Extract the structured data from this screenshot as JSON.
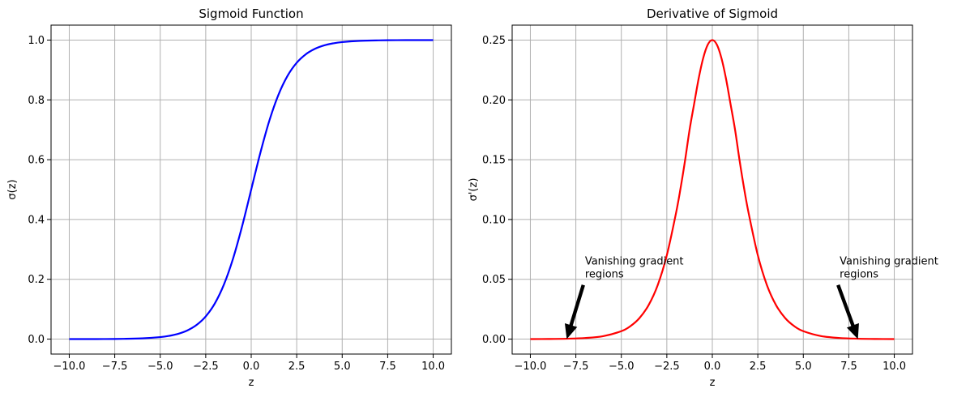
{
  "chart_data": [
    {
      "type": "line",
      "title": "Sigmoid Function",
      "xlabel": "z",
      "ylabel": "σ(z)",
      "xlim": [
        -11,
        11
      ],
      "ylim": [
        -0.05,
        1.05
      ],
      "xticks": [
        -10,
        -7.5,
        -5,
        -2.5,
        0,
        2.5,
        5,
        7.5,
        10
      ],
      "xtick_labels": [
        "−10.0",
        "−7.5",
        "−5.0",
        "−2.5",
        "0.0",
        "2.5",
        "5.0",
        "7.5",
        "10.0"
      ],
      "yticks": [
        0,
        0.2,
        0.4,
        0.6,
        0.8,
        1.0
      ],
      "ytick_labels": [
        "0.0",
        "0.2",
        "0.4",
        "0.6",
        "0.8",
        "1.0"
      ],
      "grid": true,
      "series": [
        {
          "color": "#0000ff",
          "x": [
            -10,
            -9,
            -8,
            -7,
            -6,
            -5,
            -4.5,
            -4,
            -3.5,
            -3,
            -2.5,
            -2,
            -1.5,
            -1,
            -0.5,
            0,
            0.5,
            1,
            1.5,
            2,
            2.5,
            3,
            3.5,
            4,
            4.5,
            5,
            6,
            7,
            8,
            9,
            10
          ],
          "y": [
            5e-05,
            0.00012,
            0.00034,
            0.00091,
            0.00247,
            0.00669,
            0.01099,
            0.01799,
            0.02931,
            0.04743,
            0.07586,
            0.1192,
            0.18243,
            0.26894,
            0.37754,
            0.5,
            0.62246,
            0.73106,
            0.81757,
            0.8808,
            0.92414,
            0.95257,
            0.97069,
            0.98201,
            0.98901,
            0.99331,
            0.99753,
            0.99909,
            0.99966,
            0.99988,
            0.99995
          ]
        }
      ]
    },
    {
      "type": "line",
      "title": "Derivative of Sigmoid",
      "xlabel": "z",
      "ylabel": "σ'(z)",
      "xlim": [
        -11,
        11
      ],
      "ylim": [
        -0.0125,
        0.2625
      ],
      "xticks": [
        -10,
        -7.5,
        -5,
        -2.5,
        0,
        2.5,
        5,
        7.5,
        10
      ],
      "xtick_labels": [
        "−10.0",
        "−7.5",
        "−5.0",
        "−2.5",
        "0.0",
        "2.5",
        "5.0",
        "7.5",
        "10.0"
      ],
      "yticks": [
        0,
        0.05,
        0.1,
        0.15,
        0.2,
        0.25
      ],
      "ytick_labels": [
        "0.00",
        "0.05",
        "0.10",
        "0.15",
        "0.20",
        "0.25"
      ],
      "grid": true,
      "series": [
        {
          "color": "#ff0000",
          "x": [
            -10,
            -9,
            -8,
            -7,
            -6,
            -5,
            -4.5,
            -4,
            -3.5,
            -3,
            -2.5,
            -2,
            -1.75,
            -1.5,
            -1.25,
            -1,
            -0.75,
            -0.5,
            -0.25,
            0,
            0.25,
            0.5,
            0.75,
            1,
            1.25,
            1.5,
            1.75,
            2,
            2.5,
            3,
            3.5,
            4,
            4.5,
            5,
            6,
            7,
            8,
            9,
            10
          ],
          "y": [
            5e-05,
            0.00012,
            0.00034,
            0.00091,
            0.00247,
            0.00665,
            0.01086,
            0.01766,
            0.02845,
            0.04518,
            0.07011,
            0.10499,
            0.12569,
            0.14915,
            0.17501,
            0.19661,
            0.21789,
            0.235,
            0.24613,
            0.25,
            0.24613,
            0.235,
            0.21789,
            0.19661,
            0.17501,
            0.14915,
            0.12569,
            0.10499,
            0.07011,
            0.04518,
            0.02845,
            0.01766,
            0.01086,
            0.00665,
            0.00247,
            0.00091,
            0.00034,
            0.00012,
            5e-05
          ]
        }
      ],
      "annotations": [
        {
          "lines": [
            "Vanishing gradient",
            "regions"
          ],
          "text_at": [
            -7,
            0.05
          ],
          "arrow_to": [
            -8,
            0
          ]
        },
        {
          "lines": [
            "Vanishing gradient",
            "regions"
          ],
          "text_at": [
            7,
            0.05
          ],
          "arrow_to": [
            8,
            0
          ]
        }
      ]
    }
  ]
}
